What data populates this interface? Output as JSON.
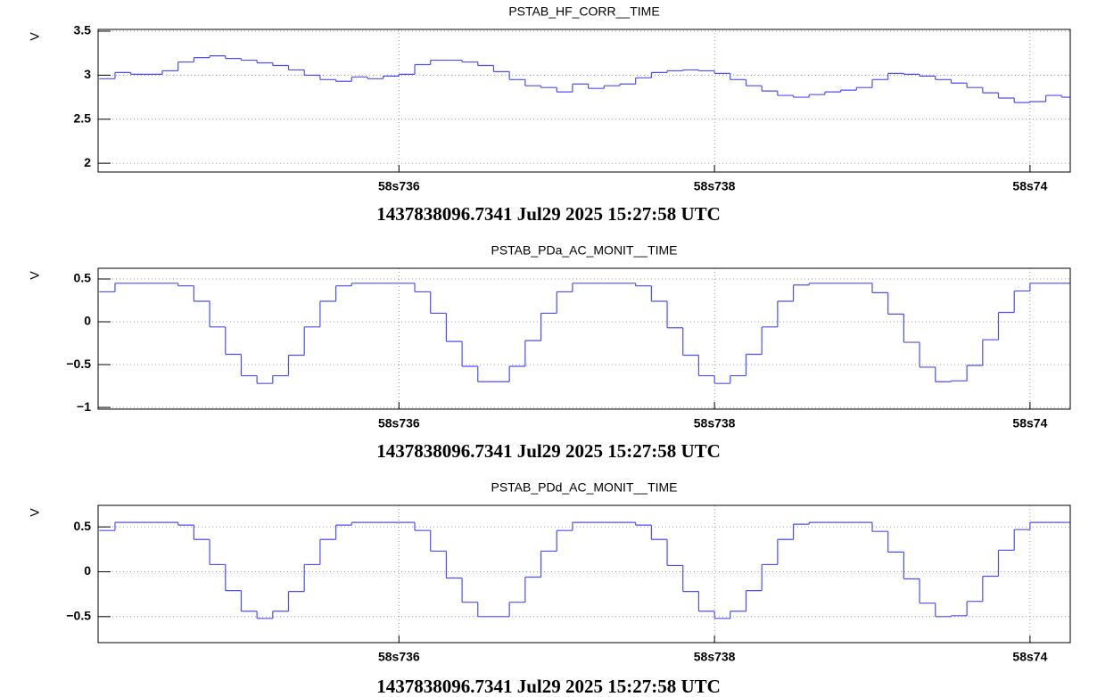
{
  "chart_data": [
    {
      "type": "step",
      "title": "PSTAB_HF_CORR__TIME",
      "x_label": "1437838096.7341 Jul29 2025 15:27:58 UTC",
      "y_label": "V",
      "color": "#4d4dff",
      "grid": true,
      "xlim": [
        58.734093,
        58.740255
      ],
      "ylim": [
        1.9,
        3.52
      ],
      "xticks": [
        {
          "value": 58.736,
          "label": "58s736"
        },
        {
          "value": 58.738,
          "label": "58s738"
        },
        {
          "value": 58.74,
          "label": "58s74"
        }
      ],
      "yticks": [
        2,
        2.5,
        3,
        3.5
      ],
      "x": [
        58.7341,
        58.7342,
        58.7343,
        58.7344,
        58.7345,
        58.7346,
        58.7347,
        58.7348,
        58.7349,
        58.735,
        58.7351,
        58.7352,
        58.7353,
        58.7354,
        58.7355,
        58.7356,
        58.7357,
        58.7358,
        58.7359,
        58.736,
        58.7361,
        58.7362,
        58.7363,
        58.7364,
        58.7365,
        58.7366,
        58.7367,
        58.7368,
        58.7369,
        58.737,
        58.7371,
        58.7372,
        58.7373,
        58.7374,
        58.7375,
        58.7376,
        58.7377,
        58.7378,
        58.7379,
        58.738,
        58.7381,
        58.7382,
        58.7383,
        58.7384,
        58.7385,
        58.7386,
        58.7387,
        58.7388,
        58.7389,
        58.739,
        58.7391,
        58.7392,
        58.7393,
        58.7394,
        58.7395,
        58.7396,
        58.7397,
        58.7398,
        58.7399,
        58.74,
        58.7401,
        58.7402
      ],
      "values": [
        2.96,
        3.03,
        3.01,
        3.01,
        3.05,
        3.15,
        3.2,
        3.22,
        3.19,
        3.17,
        3.14,
        3.11,
        3.06,
        3.0,
        2.95,
        2.93,
        2.98,
        2.96,
        2.99,
        3.01,
        3.12,
        3.17,
        3.17,
        3.15,
        3.11,
        3.04,
        2.95,
        2.88,
        2.86,
        2.81,
        2.9,
        2.85,
        2.88,
        2.9,
        2.97,
        3.03,
        3.05,
        3.06,
        3.05,
        3.02,
        2.95,
        2.88,
        2.82,
        2.77,
        2.75,
        2.78,
        2.81,
        2.83,
        2.86,
        2.95,
        3.02,
        3.01,
        2.99,
        2.95,
        2.91,
        2.86,
        2.8,
        2.74,
        2.69,
        2.7,
        2.77,
        2.75
      ]
    },
    {
      "type": "step",
      "title": "PSTAB_PDa_AC_MONIT__TIME",
      "x_label": "1437838096.7341 Jul29 2025 15:27:58 UTC",
      "y_label": "V",
      "color": "#4d4dff",
      "grid": true,
      "xlim": [
        58.734093,
        58.740255
      ],
      "ylim": [
        -1.02,
        0.625
      ],
      "xticks": [
        {
          "value": 58.736,
          "label": "58s736"
        },
        {
          "value": 58.738,
          "label": "58s738"
        },
        {
          "value": 58.74,
          "label": "58s74"
        }
      ],
      "yticks": [
        {
          "value": -1,
          "label": "−1"
        },
        {
          "value": -0.5,
          "label": "−0.5"
        },
        0,
        0.5
      ],
      "x": [
        58.7341,
        58.7342,
        58.7343,
        58.7344,
        58.7345,
        58.7346,
        58.7347,
        58.7348,
        58.7349,
        58.735,
        58.7351,
        58.7352,
        58.7353,
        58.7354,
        58.7355,
        58.7356,
        58.7357,
        58.7358,
        58.7359,
        58.736,
        58.7361,
        58.7362,
        58.7363,
        58.7364,
        58.7365,
        58.7366,
        58.7367,
        58.7368,
        58.7369,
        58.737,
        58.7371,
        58.7372,
        58.7373,
        58.7374,
        58.7375,
        58.7376,
        58.7377,
        58.7378,
        58.7379,
        58.738,
        58.7381,
        58.7382,
        58.7383,
        58.7384,
        58.7385,
        58.7386,
        58.7387,
        58.7388,
        58.7389,
        58.739,
        58.7391,
        58.7392,
        58.7393,
        58.7394,
        58.7395,
        58.7396,
        58.7397,
        58.7398,
        58.7399,
        58.74,
        58.7401,
        58.7402
      ],
      "values": [
        0.35,
        0.45,
        0.45,
        0.45,
        0.45,
        0.42,
        0.24,
        -0.06,
        -0.38,
        -0.63,
        -0.72,
        -0.63,
        -0.39,
        -0.06,
        0.24,
        0.42,
        0.45,
        0.45,
        0.45,
        0.45,
        0.35,
        0.1,
        -0.23,
        -0.52,
        -0.7,
        -0.7,
        -0.52,
        -0.22,
        0.1,
        0.35,
        0.45,
        0.45,
        0.45,
        0.45,
        0.42,
        0.24,
        -0.07,
        -0.39,
        -0.63,
        -0.72,
        -0.63,
        -0.38,
        -0.06,
        0.24,
        0.43,
        0.45,
        0.45,
        0.45,
        0.45,
        0.34,
        0.09,
        -0.24,
        -0.53,
        -0.7,
        -0.69,
        -0.51,
        -0.21,
        0.11,
        0.36,
        0.45,
        0.45,
        0.45
      ]
    },
    {
      "type": "step",
      "title": "PSTAB_PDd_AC_MONIT__TIME",
      "x_label": "1437838096.7341 Jul29 2025 15:27:58 UTC",
      "y_label": "V",
      "color": "#4d4dff",
      "grid": true,
      "xlim": [
        58.734093,
        58.740255
      ],
      "ylim": [
        -0.79,
        0.74
      ],
      "xticks": [
        {
          "value": 58.736,
          "label": "58s736"
        },
        {
          "value": 58.738,
          "label": "58s738"
        },
        {
          "value": 58.74,
          "label": "58s74"
        }
      ],
      "yticks": [
        {
          "value": -0.5,
          "label": "−0.5"
        },
        0,
        0.5
      ],
      "x": [
        58.7341,
        58.7342,
        58.7343,
        58.7344,
        58.7345,
        58.7346,
        58.7347,
        58.7348,
        58.7349,
        58.735,
        58.7351,
        58.7352,
        58.7353,
        58.7354,
        58.7355,
        58.7356,
        58.7357,
        58.7358,
        58.7359,
        58.736,
        58.7361,
        58.7362,
        58.7363,
        58.7364,
        58.7365,
        58.7366,
        58.7367,
        58.7368,
        58.7369,
        58.737,
        58.7371,
        58.7372,
        58.7373,
        58.7374,
        58.7375,
        58.7376,
        58.7377,
        58.7378,
        58.7379,
        58.738,
        58.7381,
        58.7382,
        58.7383,
        58.7384,
        58.7385,
        58.7386,
        58.7387,
        58.7388,
        58.7389,
        58.739,
        58.7391,
        58.7392,
        58.7393,
        58.7394,
        58.7395,
        58.7396,
        58.7397,
        58.7398,
        58.7399,
        58.74,
        58.7401,
        58.7402
      ],
      "values": [
        0.46,
        0.55,
        0.55,
        0.55,
        0.55,
        0.52,
        0.36,
        0.08,
        -0.21,
        -0.44,
        -0.52,
        -0.44,
        -0.22,
        0.08,
        0.36,
        0.52,
        0.55,
        0.55,
        0.55,
        0.55,
        0.46,
        0.23,
        -0.07,
        -0.34,
        -0.5,
        -0.5,
        -0.34,
        -0.06,
        0.23,
        0.46,
        0.55,
        0.55,
        0.55,
        0.55,
        0.52,
        0.36,
        0.07,
        -0.22,
        -0.44,
        -0.52,
        -0.44,
        -0.21,
        0.08,
        0.36,
        0.53,
        0.55,
        0.55,
        0.55,
        0.55,
        0.45,
        0.22,
        -0.08,
        -0.35,
        -0.5,
        -0.49,
        -0.33,
        -0.05,
        0.24,
        0.47,
        0.55,
        0.55,
        0.55
      ]
    }
  ]
}
